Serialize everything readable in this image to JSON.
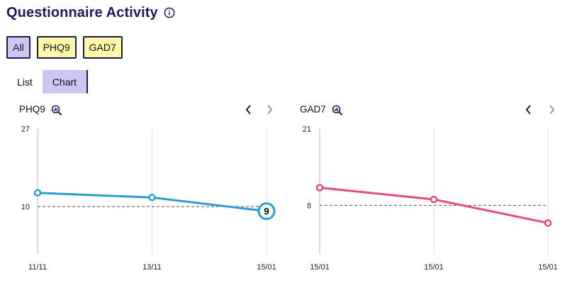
{
  "header": {
    "title": "Questionnaire Activity",
    "info_icon": "info-circle-icon"
  },
  "filters": [
    {
      "label": "All",
      "active": true
    },
    {
      "label": "PHQ9",
      "active": false
    },
    {
      "label": "GAD7",
      "active": false
    }
  ],
  "tabs": [
    {
      "label": "List",
      "active": false
    },
    {
      "label": "Chart",
      "active": true
    }
  ],
  "colors": {
    "accent": "#1e1a4d",
    "active_bg": "#cfc6f5",
    "inactive_bg": "#fcf8a8",
    "phq9_line": "#2b9fd4",
    "gad7_line": "#e64a86"
  },
  "chart_data": [
    {
      "type": "line",
      "title": "PHQ9",
      "categories": [
        "11/11",
        "13/11",
        "15/01"
      ],
      "values": [
        13,
        12,
        9
      ],
      "ylim": [
        0,
        27
      ],
      "yticks": [
        "27",
        "10"
      ],
      "threshold": 10,
      "highlight_label": "9",
      "color": "#2b9fd4"
    },
    {
      "type": "line",
      "title": "GAD7",
      "categories": [
        "15/01",
        "15/01",
        "15/01"
      ],
      "values": [
        11,
        9,
        5
      ],
      "ylim": [
        0,
        21
      ],
      "yticks": [
        "21",
        "8"
      ],
      "threshold": 8,
      "color": "#e64a86"
    }
  ]
}
